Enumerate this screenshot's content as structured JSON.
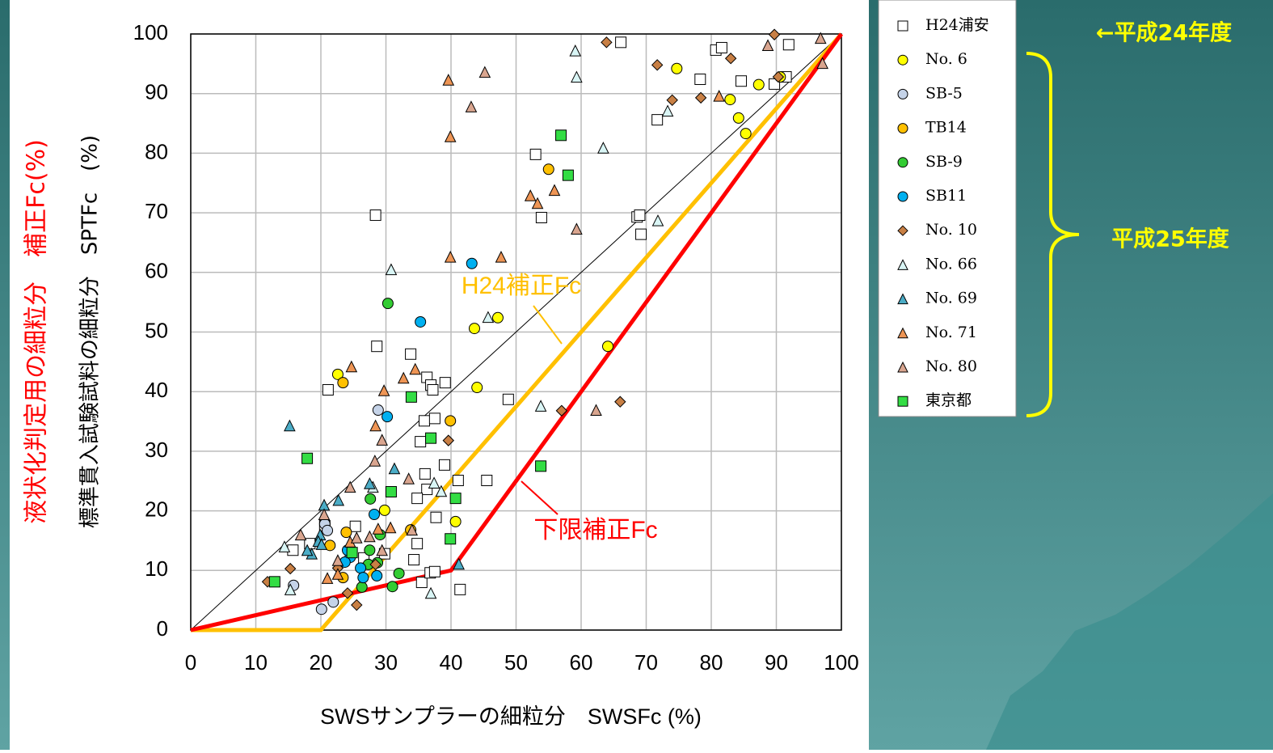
{
  "chart_data": {
    "type": "scatter",
    "x_label": "SWSサンプラーの細粒分　SWSFc (%)",
    "y_label_1": "液状化判定用の細粒分　補正Fc(%)",
    "y_label_2": "標準貫入試験試料の細粒分　SPTFc　(%)",
    "xlim": [
      0,
      100
    ],
    "ylim": [
      0,
      100
    ],
    "xticks": [
      0,
      10,
      20,
      30,
      40,
      50,
      60,
      70,
      80,
      90,
      100
    ],
    "yticks": [
      0,
      10,
      20,
      30,
      40,
      50,
      60,
      70,
      80,
      90,
      100
    ],
    "grid": true,
    "annotations": [
      "←平成24年度",
      "平成25年度"
    ],
    "lines": [
      {
        "color": "#000000",
        "x": [
          0,
          100
        ],
        "y": [
          0,
          100
        ]
      },
      {
        "name": "H24補正Fc",
        "color": "#ffc000",
        "x": [
          0,
          20,
          100
        ],
        "y": [
          0,
          0,
          100
        ]
      },
      {
        "name": "下限補正Fc",
        "color": "#ff0000",
        "x": [
          0,
          40,
          100
        ],
        "y": [
          0,
          10,
          100
        ]
      }
    ],
    "series": [
      {
        "name": "H24浦安",
        "color": "#ffffff",
        "marker": "square",
        "x": [
          28.4,
          28.6,
          21.1,
          33.8,
          36.3,
          36.9,
          39.1,
          37.2,
          48.8,
          35.9,
          37.5,
          35.3,
          39.0,
          36.0,
          41.1,
          45.5,
          36.3,
          34.8,
          37.7,
          25.3,
          20.6,
          15.7,
          18.3,
          34.8,
          34.3,
          35.5,
          36.8,
          37.5,
          41.4,
          53.0,
          53.9,
          66.1,
          68.6,
          69.0,
          69.2,
          71.7,
          78.3,
          80.7,
          81.6,
          84.6,
          89.7,
          91.5,
          91.9,
          26.6,
          29.8
        ],
        "y": [
          69.6,
          47.6,
          40.3,
          46.3,
          42.4,
          41.1,
          41.5,
          40.3,
          38.7,
          35.1,
          35.5,
          31.6,
          27.7,
          26.2,
          25.1,
          25.1,
          23.6,
          22.1,
          18.9,
          17.4,
          17.5,
          13.4,
          14.5,
          14.5,
          11.8,
          8.0,
          9.6,
          9.8,
          6.8,
          79.8,
          69.2,
          98.6,
          69.3,
          69.6,
          66.4,
          85.6,
          92.4,
          97.3,
          97.7,
          92.1,
          91.6,
          92.8,
          98.2,
          12.1,
          12.8
        ]
      },
      {
        "name": "No. 6",
        "color": "#ffff00",
        "marker": "circle",
        "x": [
          22.6,
          43.6,
          47.2,
          44.0,
          40.7,
          29.8,
          64.1,
          74.7,
          82.9,
          84.2,
          85.3,
          87.3,
          90.6
        ],
        "y": [
          42.9,
          50.6,
          52.4,
          40.7,
          18.2,
          20.1,
          47.6,
          94.2,
          89.0,
          85.9,
          83.3,
          91.5,
          92.8
        ]
      },
      {
        "name": "SB-5",
        "color": "#c5d3e8",
        "marker": "circle",
        "x": [
          28.8,
          20.6,
          21.0,
          15.8,
          20.1,
          21.9
        ],
        "y": [
          36.9,
          17.8,
          16.7,
          7.5,
          3.5,
          4.7
        ]
      },
      {
        "name": "TB14",
        "color": "#ffc000",
        "marker": "circle",
        "x": [
          39.9,
          55.0,
          23.4,
          23.9,
          23.4,
          21.4,
          33.8
        ],
        "y": [
          35.1,
          77.3,
          41.5,
          16.4,
          8.8,
          14.2,
          16.8
        ]
      },
      {
        "name": "SB-9",
        "color": "#33cc33",
        "marker": "circle",
        "x": [
          30.3,
          27.6,
          29.1,
          27.5,
          26.3,
          32.0,
          31.0,
          27.3,
          28.7
        ],
        "y": [
          54.8,
          22.0,
          16.0,
          13.4,
          7.2,
          9.5,
          7.3,
          11.0,
          11.3
        ]
      },
      {
        "name": "SB11",
        "color": "#00b0f0",
        "marker": "circle",
        "x": [
          43.2,
          35.3,
          30.2,
          28.2,
          26.1,
          28.6,
          24.5,
          23.7,
          24.1,
          26.5
        ],
        "y": [
          61.5,
          51.7,
          35.8,
          19.4,
          10.4,
          9.1,
          12.2,
          11.4,
          13.4,
          8.8
        ]
      },
      {
        "name": "No. 10",
        "color": "#c87f44",
        "marker": "diamond",
        "x": [
          63.9,
          89.7,
          71.7,
          83.0,
          90.3,
          74.0,
          78.4,
          57.0,
          66.0,
          39.6,
          15.3,
          11.8,
          25.5,
          24.1,
          28.4,
          22.6
        ],
        "y": [
          98.6,
          99.9,
          94.8,
          95.9,
          92.8,
          88.9,
          89.3,
          36.8,
          38.3,
          31.8,
          10.3,
          8.1,
          4.2,
          6.2,
          11.0,
          10.4
        ]
      },
      {
        "name": "No. 66",
        "color": "#d9f5f5",
        "marker": "triangle",
        "x": [
          59.1,
          59.3,
          63.4,
          71.8,
          73.3,
          30.8,
          45.7,
          53.8,
          37.4,
          38.5,
          36.9,
          14.4,
          15.3,
          28.0
        ],
        "y": [
          97.2,
          92.8,
          80.9,
          68.7,
          87.1,
          60.5,
          52.5,
          37.6,
          24.7,
          23.3,
          6.2,
          14.0,
          6.8,
          24.0
        ]
      },
      {
        "name": "No. 69",
        "color": "#4bacc6",
        "marker": "triangle",
        "x": [
          15.2,
          31.3,
          20.5,
          22.7,
          27.5,
          19.9,
          19.6,
          18.6,
          20.1,
          41.2,
          17.9
        ],
        "y": [
          34.3,
          27.1,
          21.0,
          21.8,
          24.6,
          16.0,
          14.9,
          12.8,
          14.4,
          11.1,
          13.4
        ]
      },
      {
        "name": "No. 71",
        "color": "#ee9555",
        "marker": "triangle",
        "x": [
          39.6,
          39.9,
          39.9,
          47.7,
          52.2,
          53.3,
          55.9,
          81.2,
          24.7,
          29.7,
          34.5,
          32.7,
          28.4,
          28.8,
          30.7,
          24.5,
          21.0,
          22.6
        ],
        "y": [
          92.3,
          82.8,
          62.6,
          62.6,
          72.9,
          71.6,
          73.8,
          89.6,
          44.2,
          40.2,
          43.8,
          42.3,
          34.3,
          17.0,
          17.2,
          14.8,
          8.7,
          9.4
        ]
      },
      {
        "name": "No. 80",
        "color": "#d9a58f",
        "marker": "triangle",
        "x": [
          43.1,
          45.2,
          96.8,
          88.7,
          97.1,
          59.3,
          62.3,
          29.4,
          28.3,
          33.5,
          20.5,
          24.5,
          16.9,
          27.5,
          29.4,
          34.0,
          25.5,
          22.6
        ],
        "y": [
          87.8,
          93.6,
          99.3,
          98.1,
          95.1,
          67.3,
          36.9,
          31.9,
          28.4,
          25.4,
          19.4,
          24.0,
          16.0,
          15.7,
          13.4,
          16.8,
          15.5,
          11.7
        ]
      },
      {
        "name": "東京都",
        "color": "#33dd44",
        "marker": "square",
        "x": [
          56.9,
          58.0,
          53.8,
          17.9,
          33.9,
          36.9,
          30.8,
          40.7,
          39.9,
          24.8,
          12.9
        ],
        "y": [
          83.0,
          76.3,
          27.5,
          28.8,
          39.1,
          32.2,
          23.2,
          22.1,
          15.3,
          13.0,
          8.1
        ]
      }
    ]
  }
}
